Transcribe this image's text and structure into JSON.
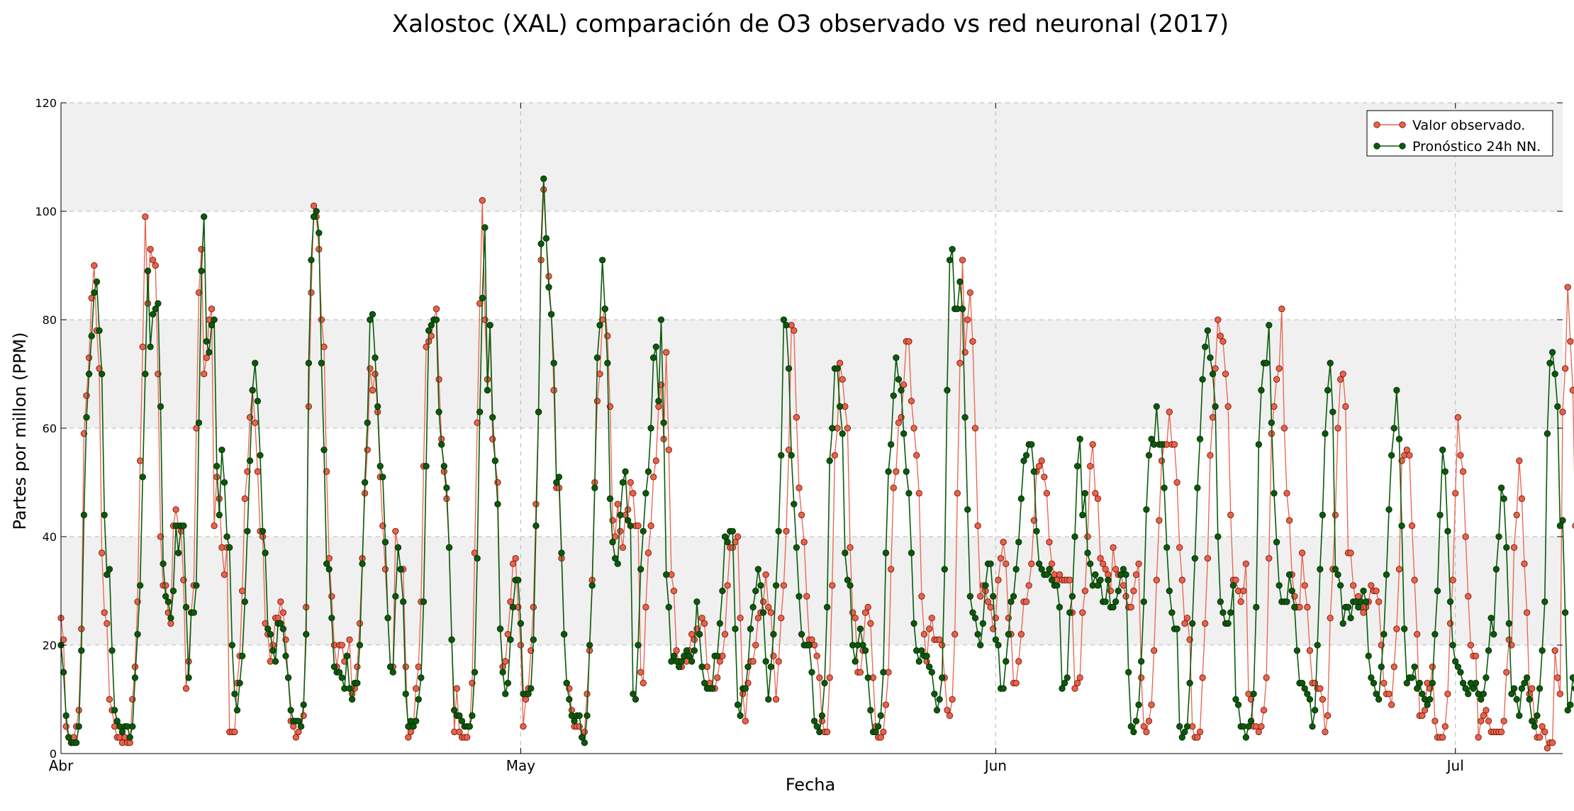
{
  "chart_data": {
    "type": "line",
    "title": "Xalostoc (XAL) comparación de O3 observado vs red neuronal (2017)",
    "xlabel": "Fecha",
    "ylabel": "Partes por millon (PPM)",
    "ylim": [
      0,
      120
    ],
    "xlim": [
      "2017-04-01",
      "2017-07-08"
    ],
    "yticks": [
      0,
      20,
      40,
      60,
      80,
      100,
      120
    ],
    "xticks": [
      {
        "label": "Abr",
        "date": "2017-04-01"
      },
      {
        "label": "May",
        "date": "2017-05-01"
      },
      {
        "label": "Jun",
        "date": "2017-06-01"
      },
      {
        "label": "Jul",
        "date": "2017-07-01"
      }
    ],
    "background_bands": [
      [
        20,
        40
      ],
      [
        60,
        80
      ],
      [
        100,
        120
      ]
    ],
    "grid": true,
    "legend_position": "top-right",
    "series": [
      {
        "name": "Valor observado.",
        "color": "#e8624c",
        "marker_edge": "#7a1a0a",
        "x_start": "2017-04-01",
        "step_hours": 4,
        "values": [
          25,
          21,
          5,
          3,
          2,
          3,
          5,
          8,
          23,
          59,
          66,
          73,
          84,
          90,
          78,
          71,
          37,
          26,
          24,
          10,
          8,
          5,
          3,
          3,
          2,
          3,
          2,
          2,
          10,
          16,
          28,
          54,
          75,
          99,
          83,
          93,
          91,
          90,
          70,
          40,
          31,
          31,
          26,
          24,
          42,
          45,
          42,
          41,
          32,
          12,
          17,
          26,
          31,
          60,
          85,
          93,
          70,
          73,
          80,
          82,
          42,
          51,
          47,
          38,
          33,
          38,
          4,
          4,
          4,
          13,
          18,
          30,
          47,
          52,
          62,
          67,
          61,
          52,
          41,
          40,
          24,
          22,
          17,
          20,
          25,
          25,
          28,
          26,
          21,
          14,
          6,
          5,
          3,
          4,
          5,
          7,
          27,
          64,
          85,
          101,
          99,
          93,
          80,
          75,
          52,
          36,
          29,
          20,
          16,
          20,
          20,
          17,
          18,
          21,
          11,
          12,
          16,
          24,
          36,
          48,
          56,
          71,
          67,
          70,
          63,
          51,
          42,
          34,
          25,
          16,
          16,
          41,
          38,
          34,
          34,
          16,
          3,
          4,
          5,
          12,
          16,
          28,
          53,
          75,
          76,
          77,
          80,
          82,
          69,
          58,
          52,
          47,
          38,
          21,
          4,
          12,
          4,
          3,
          3,
          3,
          5,
          13,
          37,
          61,
          83,
          102,
          80,
          69,
          79,
          58,
          54,
          50,
          23,
          16,
          17,
          22,
          28,
          35,
          36,
          27,
          20,
          5,
          10,
          12,
          19,
          27,
          46,
          63,
          91,
          104,
          95,
          88,
          81,
          67,
          49,
          49,
          36,
          22,
          13,
          12,
          8,
          5,
          5,
          5,
          3,
          4,
          11,
          19,
          32,
          50,
          65,
          70,
          80,
          82,
          77,
          64,
          43,
          40,
          46,
          41,
          38,
          44,
          45,
          50,
          48,
          42,
          42,
          15,
          13,
          27,
          37,
          42,
          51,
          54,
          64,
          68,
          58,
          74,
          56,
          33,
          30,
          19,
          17,
          16,
          18,
          17,
          19,
          22,
          21,
          23,
          22,
          25,
          24,
          16,
          13,
          12,
          12,
          14,
          17,
          18,
          22,
          31,
          38,
          38,
          39,
          40,
          25,
          11,
          6,
          13,
          17,
          17,
          20,
          25,
          26,
          28,
          33,
          27,
          26,
          18,
          10,
          17,
          25,
          31,
          41,
          56,
          79,
          78,
          62,
          49,
          44,
          39,
          29,
          21,
          21,
          20,
          18,
          14,
          6,
          4,
          4,
          14,
          31,
          55,
          60,
          72,
          69,
          64,
          60,
          38,
          26,
          25,
          15,
          15,
          19,
          26,
          27,
          24,
          14,
          5,
          3,
          3,
          4,
          9,
          15,
          34,
          49,
          52,
          61,
          62,
          68,
          76,
          76,
          65,
          60,
          55,
          48,
          29,
          22,
          17,
          23,
          25,
          21,
          21,
          21,
          20,
          14,
          8,
          7,
          10,
          22,
          48,
          72,
          91,
          74,
          80,
          85,
          76,
          60,
          42,
          29,
          31,
          30,
          28,
          27,
          23,
          25,
          32,
          36,
          39,
          35,
          25,
          22,
          13,
          13,
          17,
          22,
          28,
          28,
          31,
          35,
          43,
          52,
          53,
          54,
          51,
          48,
          39,
          35,
          33,
          32,
          33,
          32,
          32,
          32,
          32,
          26,
          12,
          13,
          14,
          26,
          30,
          40,
          53,
          57,
          48,
          47,
          36,
          35,
          34,
          33,
          30,
          38,
          34,
          33,
          33,
          31,
          29,
          27,
          27,
          30,
          33,
          35,
          14,
          5,
          4,
          6,
          9,
          19,
          32,
          43,
          54,
          57,
          57,
          63,
          57,
          57,
          50,
          38,
          32,
          24,
          25,
          21,
          5,
          3,
          3,
          4,
          14,
          24,
          36,
          55,
          62,
          71,
          80,
          77,
          76,
          70,
          64,
          44,
          32,
          32,
          30,
          28,
          30,
          35,
          11,
          10,
          5,
          5,
          4,
          5,
          8,
          14,
          36,
          59,
          64,
          69,
          71,
          82,
          60,
          48,
          43,
          33,
          29,
          27,
          27,
          37,
          31,
          27,
          19,
          13,
          13,
          12,
          12,
          10,
          4,
          7,
          25,
          34,
          44,
          60,
          69,
          70,
          64,
          37,
          37,
          31,
          28,
          29,
          27,
          26,
          27,
          28,
          31,
          30,
          30,
          28,
          20,
          13,
          11,
          11,
          9,
          16,
          23,
          34,
          54,
          55,
          56,
          55,
          42,
          32,
          22,
          7,
          7,
          8,
          13,
          12,
          16,
          6,
          3,
          3,
          3,
          5,
          11,
          24,
          32,
          48,
          62,
          55,
          52,
          40,
          29,
          20,
          18,
          18,
          3,
          6,
          7,
          8,
          6,
          4,
          4,
          4,
          4,
          4,
          6,
          15,
          21,
          20,
          38,
          44,
          54,
          47,
          35,
          26,
          11,
          12,
          6,
          3,
          3,
          5,
          4,
          1,
          2,
          2,
          19,
          14,
          11,
          63,
          71,
          86,
          76,
          67,
          42,
          42,
          24,
          7,
          5,
          7,
          4,
          2,
          4,
          3,
          2,
          5,
          8,
          1,
          1,
          8,
          15,
          30,
          44,
          40,
          33,
          23,
          17,
          9,
          1,
          1,
          1,
          1,
          6,
          17,
          10,
          10,
          10,
          1,
          1,
          2,
          6,
          8,
          17,
          31,
          42,
          42,
          48,
          57,
          52,
          42,
          32,
          15,
          17,
          13,
          11,
          13,
          13,
          20,
          19,
          20,
          23,
          5,
          5,
          2,
          3,
          13,
          28,
          30,
          35,
          44,
          60,
          65,
          42,
          17,
          25,
          14,
          5,
          2,
          1
        ]
      },
      {
        "name": "Pronóstico 24h NN.",
        "color": "#0a5a0a",
        "marker_edge": "#0a2a0a",
        "x_start": "2017-04-01",
        "step_hours": 4,
        "values": [
          20,
          15,
          7,
          3,
          2,
          2,
          2,
          5,
          19,
          44,
          62,
          70,
          77,
          85,
          87,
          78,
          70,
          44,
          33,
          34,
          19,
          8,
          6,
          5,
          4,
          5,
          5,
          3,
          5,
          14,
          22,
          31,
          51,
          70,
          89,
          75,
          81,
          82,
          83,
          64,
          35,
          29,
          28,
          25,
          30,
          42,
          37,
          42,
          42,
          27,
          14,
          26,
          26,
          31,
          61,
          89,
          99,
          76,
          74,
          79,
          80,
          53,
          44,
          56,
          50,
          40,
          38,
          20,
          11,
          8,
          13,
          18,
          28,
          41,
          54,
          67,
          72,
          65,
          55,
          41,
          37,
          23,
          22,
          19,
          17,
          24,
          24,
          23,
          18,
          14,
          8,
          6,
          6,
          6,
          5,
          9,
          22,
          72,
          91,
          99,
          100,
          96,
          72,
          56,
          35,
          34,
          25,
          16,
          15,
          15,
          14,
          12,
          18,
          12,
          10,
          13,
          13,
          20,
          35,
          50,
          61,
          80,
          81,
          73,
          64,
          53,
          51,
          39,
          25,
          16,
          15,
          29,
          38,
          34,
          28,
          11,
          5,
          6,
          5,
          6,
          10,
          14,
          28,
          53,
          78,
          79,
          80,
          80,
          63,
          57,
          53,
          49,
          38,
          21,
          8,
          7,
          7,
          6,
          5,
          5,
          5,
          7,
          15,
          36,
          63,
          84,
          97,
          67,
          79,
          62,
          54,
          46,
          23,
          15,
          11,
          13,
          21,
          27,
          32,
          32,
          24,
          11,
          11,
          11,
          12,
          21,
          42,
          63,
          94,
          106,
          95,
          86,
          81,
          72,
          50,
          51,
          37,
          22,
          13,
          10,
          7,
          6,
          7,
          7,
          3,
          2,
          7,
          20,
          31,
          49,
          73,
          79,
          91,
          82,
          72,
          47,
          39,
          36,
          35,
          44,
          50,
          52,
          43,
          42,
          11,
          10,
          20,
          34,
          41,
          48,
          52,
          60,
          73,
          75,
          65,
          80,
          61,
          33,
          27,
          17,
          18,
          17,
          16,
          17,
          18,
          19,
          18,
          17,
          19,
          28,
          22,
          16,
          13,
          12,
          12,
          12,
          18,
          18,
          24,
          30,
          40,
          39,
          41,
          41,
          23,
          9,
          7,
          12,
          12,
          16,
          23,
          27,
          30,
          34,
          31,
          26,
          17,
          10,
          16,
          22,
          31,
          41,
          55,
          80,
          79,
          71,
          55,
          46,
          38,
          29,
          22,
          20,
          20,
          20,
          15,
          6,
          5,
          4,
          7,
          13,
          27,
          54,
          60,
          71,
          71,
          64,
          59,
          37,
          32,
          31,
          20,
          17,
          20,
          23,
          20,
          19,
          14,
          8,
          4,
          4,
          5,
          7,
          15,
          37,
          52,
          57,
          66,
          73,
          69,
          67,
          59,
          52,
          48,
          37,
          24,
          19,
          17,
          19,
          18,
          18,
          16,
          15,
          11,
          8,
          10,
          14,
          34,
          67,
          91,
          93,
          82,
          82,
          87,
          82,
          62,
          45,
          29,
          26,
          25,
          22,
          20,
          24,
          31,
          35,
          35,
          29,
          21,
          20,
          12,
          12,
          17,
          22,
          28,
          29,
          34,
          39,
          47,
          54,
          55,
          57,
          57,
          52,
          41,
          35,
          34,
          33,
          33,
          34,
          32,
          31,
          31,
          27,
          12,
          13,
          14,
          26,
          29,
          40,
          53,
          58,
          44,
          48,
          37,
          35,
          31,
          33,
          31,
          32,
          28,
          28,
          32,
          27,
          27,
          28,
          30,
          33,
          34,
          33,
          15,
          5,
          4,
          6,
          9,
          17,
          28,
          45,
          55,
          58,
          57,
          64,
          57,
          57,
          49,
          38,
          30,
          26,
          23,
          23,
          5,
          3,
          4,
          5,
          13,
          24,
          36,
          49,
          58,
          69,
          75,
          78,
          73,
          70,
          64,
          40,
          28,
          26,
          24,
          24,
          26,
          31,
          10,
          9,
          5,
          5,
          3,
          5,
          6,
          11,
          27,
          57,
          67,
          72,
          72,
          79,
          61,
          48,
          39,
          31,
          28,
          28,
          28,
          33,
          30,
          27,
          19,
          13,
          13,
          12,
          11,
          10,
          5,
          8,
          20,
          34,
          44,
          59,
          67,
          72,
          63,
          34,
          33,
          31,
          24,
          27,
          27,
          25,
          28,
          28,
          27,
          28,
          30,
          28,
          18,
          14,
          13,
          11,
          10,
          16,
          22,
          33,
          45,
          55,
          60,
          67,
          58,
          42,
          23,
          13,
          14,
          14,
          16,
          12,
          13,
          11,
          10,
          9,
          10,
          13,
          22,
          30,
          44,
          56,
          52,
          41,
          28,
          20,
          17,
          16,
          15,
          13,
          12,
          11,
          13,
          12,
          13,
          11,
          10,
          11,
          14,
          19,
          25,
          22,
          34,
          40,
          49,
          47,
          38,
          24,
          11,
          12,
          10,
          7,
          12,
          13,
          14,
          10,
          6,
          5,
          7,
          12,
          19,
          28,
          59,
          72,
          74,
          70,
          64,
          42,
          43,
          26,
          8,
          9,
          14,
          12,
          9,
          9,
          8,
          8,
          10,
          11,
          12,
          8,
          10,
          13,
          22,
          46,
          69,
          58,
          40,
          31,
          24,
          19,
          12,
          12,
          12,
          10,
          9,
          7,
          10,
          13,
          12,
          8,
          9,
          13,
          20,
          31,
          40,
          44,
          57,
          52,
          42,
          33,
          21,
          19,
          13,
          13,
          12,
          14,
          14,
          12,
          18,
          21,
          25,
          30,
          35,
          44,
          62,
          66,
          62,
          40,
          22,
          20,
          17,
          14,
          8
        ]
      }
    ]
  }
}
